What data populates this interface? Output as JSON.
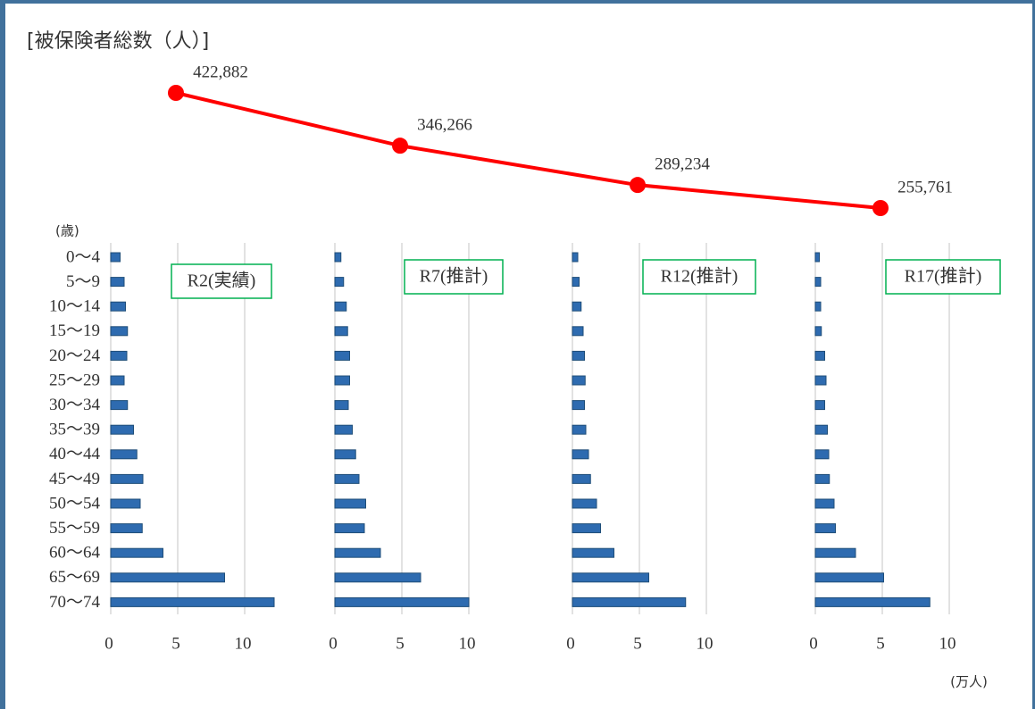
{
  "chart_data": [
    {
      "type": "line",
      "title": "[被保険者総数（人）]",
      "values": [
        422882,
        346266,
        289234,
        255761
      ],
      "value_labels": [
        "422,882",
        "346,266",
        "289,234",
        "255,761"
      ],
      "color": "#ff0000"
    },
    {
      "type": "bar",
      "label": "R2(実績)",
      "y_label": "(歳)",
      "categories": [
        "0～4",
        "5～9",
        "10～14",
        "15～19",
        "20～24",
        "25～29",
        "30～34",
        "35～39",
        "40～44",
        "45～49",
        "50～54",
        "55～59",
        "60～64",
        "65～69",
        "70～74"
      ],
      "values": [
        0.7,
        1.0,
        1.1,
        1.25,
        1.2,
        1.0,
        1.25,
        1.7,
        1.95,
        2.4,
        2.2,
        2.35,
        3.9,
        8.5,
        12.2
      ],
      "color": "#2e6bb0",
      "xlim": [
        0,
        14
      ],
      "xticks": [
        0,
        5,
        10
      ],
      "grid": true
    },
    {
      "type": "bar",
      "label": "R7(推計)",
      "values": [
        0.45,
        0.65,
        0.85,
        0.95,
        1.1,
        1.1,
        1.0,
        1.3,
        1.55,
        1.8,
        2.3,
        2.2,
        3.4,
        6.4,
        10.0
      ],
      "color": "#2e6bb0",
      "xlim": [
        0,
        14
      ],
      "xticks": [
        0,
        5,
        10
      ],
      "grid": true
    },
    {
      "type": "bar",
      "label": "R12(推計)",
      "values": [
        0.4,
        0.5,
        0.65,
        0.8,
        0.9,
        0.95,
        0.9,
        1.0,
        1.2,
        1.35,
        1.8,
        2.1,
        3.1,
        5.7,
        8.45
      ],
      "color": "#2e6bb0",
      "xlim": [
        0,
        14
      ],
      "xticks": [
        0,
        5,
        10
      ],
      "grid": true
    },
    {
      "type": "bar",
      "label": "R17(推計)",
      "x_label": "(万人)",
      "values": [
        0.3,
        0.4,
        0.4,
        0.45,
        0.7,
        0.8,
        0.7,
        0.9,
        1.0,
        1.05,
        1.4,
        1.5,
        3.0,
        5.1,
        8.55
      ],
      "color": "#2e6bb0",
      "xlim": [
        0,
        14
      ],
      "xticks": [
        0,
        5,
        10
      ],
      "grid": true
    }
  ]
}
